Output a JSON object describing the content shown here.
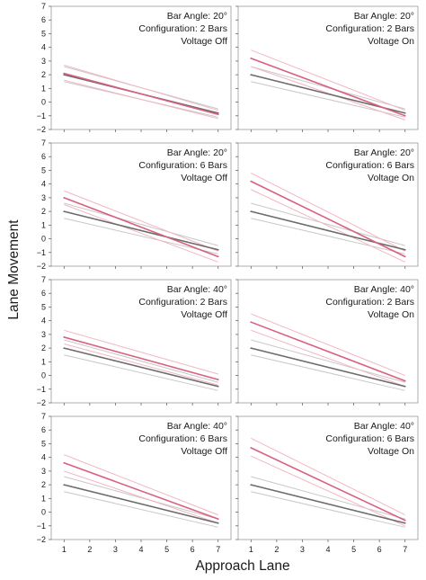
{
  "figure": {
    "xlabel": "Approach Lane",
    "ylabel": "Lane Movement"
  },
  "colors": {
    "baseline_line": "#6b6b6b",
    "baseline_band": "#c8c8c8",
    "condition_line": "#d9607e",
    "condition_band": "#f1b7c5",
    "panel_border": "#9a9a9a"
  },
  "chart_data": [
    {
      "type": "line",
      "annotation": [
        "Bar Angle: 20°",
        "Configuration: 2 Bars",
        "Voltage Off"
      ],
      "x": [
        1,
        7
      ],
      "xlim": [
        0.5,
        7.5
      ],
      "ylim": [
        -2,
        7
      ],
      "xticks": [
        1,
        2,
        3,
        4,
        5,
        6,
        7
      ],
      "yticks": [
        -2,
        -1,
        0,
        1,
        2,
        3,
        4,
        5,
        6,
        7
      ],
      "series": [
        {
          "role": "baseline",
          "values": [
            2.0,
            -0.8
          ],
          "ci_upper": [
            2.6,
            -0.5
          ],
          "ci_lower": [
            1.5,
            -1.1
          ]
        },
        {
          "role": "condition",
          "values": [
            2.1,
            -0.9
          ],
          "ci_upper": [
            2.7,
            -0.6
          ],
          "ci_lower": [
            1.6,
            -1.2
          ]
        }
      ]
    },
    {
      "type": "line",
      "annotation": [
        "Bar Angle: 20°",
        "Configuration: 2 Bars",
        "Voltage On"
      ],
      "x": [
        1,
        7
      ],
      "xlim": [
        0.5,
        7.5
      ],
      "ylim": [
        -2,
        7
      ],
      "xticks": [
        1,
        2,
        3,
        4,
        5,
        6,
        7
      ],
      "yticks": [
        -2,
        -1,
        0,
        1,
        2,
        3,
        4,
        5,
        6,
        7
      ],
      "series": [
        {
          "role": "baseline",
          "values": [
            2.0,
            -0.8
          ],
          "ci_upper": [
            2.6,
            -0.5
          ],
          "ci_lower": [
            1.5,
            -1.1
          ]
        },
        {
          "role": "condition",
          "values": [
            3.2,
            -1.0
          ],
          "ci_upper": [
            3.8,
            -0.6
          ],
          "ci_lower": [
            2.6,
            -1.3
          ]
        }
      ]
    },
    {
      "type": "line",
      "annotation": [
        "Bar Angle: 20°",
        "Configuration: 6 Bars",
        "Voltage Off"
      ],
      "x": [
        1,
        7
      ],
      "xlim": [
        0.5,
        7.5
      ],
      "ylim": [
        -2,
        7
      ],
      "xticks": [
        1,
        2,
        3,
        4,
        5,
        6,
        7
      ],
      "yticks": [
        -2,
        -1,
        0,
        1,
        2,
        3,
        4,
        5,
        6,
        7
      ],
      "series": [
        {
          "role": "baseline",
          "values": [
            2.0,
            -0.8
          ],
          "ci_upper": [
            2.6,
            -0.5
          ],
          "ci_lower": [
            1.5,
            -1.1
          ]
        },
        {
          "role": "condition",
          "values": [
            3.0,
            -1.3
          ],
          "ci_upper": [
            3.5,
            -0.9
          ],
          "ci_lower": [
            2.5,
            -1.7
          ]
        }
      ]
    },
    {
      "type": "line",
      "annotation": [
        "Bar Angle: 20°",
        "Configuration: 6 Bars",
        "Voltage On"
      ],
      "x": [
        1,
        7
      ],
      "xlim": [
        0.5,
        7.5
      ],
      "ylim": [
        -2,
        7
      ],
      "xticks": [
        1,
        2,
        3,
        4,
        5,
        6,
        7
      ],
      "yticks": [
        -2,
        -1,
        0,
        1,
        2,
        3,
        4,
        5,
        6,
        7
      ],
      "series": [
        {
          "role": "baseline",
          "values": [
            2.0,
            -0.8
          ],
          "ci_upper": [
            2.6,
            -0.5
          ],
          "ci_lower": [
            1.5,
            -1.1
          ]
        },
        {
          "role": "condition",
          "values": [
            4.2,
            -1.3
          ],
          "ci_upper": [
            4.8,
            -0.9
          ],
          "ci_lower": [
            3.6,
            -1.7
          ]
        }
      ]
    },
    {
      "type": "line",
      "annotation": [
        "Bar Angle: 40°",
        "Configuration: 2 Bars",
        "Voltage Off"
      ],
      "x": [
        1,
        7
      ],
      "xlim": [
        0.5,
        7.5
      ],
      "ylim": [
        -2,
        7
      ],
      "xticks": [
        1,
        2,
        3,
        4,
        5,
        6,
        7
      ],
      "yticks": [
        -2,
        -1,
        0,
        1,
        2,
        3,
        4,
        5,
        6,
        7
      ],
      "series": [
        {
          "role": "baseline",
          "values": [
            2.0,
            -0.8
          ],
          "ci_upper": [
            2.6,
            -0.5
          ],
          "ci_lower": [
            1.5,
            -1.1
          ]
        },
        {
          "role": "condition",
          "values": [
            2.8,
            -0.3
          ],
          "ci_upper": [
            3.3,
            0.1
          ],
          "ci_lower": [
            2.3,
            -0.7
          ]
        }
      ]
    },
    {
      "type": "line",
      "annotation": [
        "Bar Angle: 40°",
        "Configuration: 2 Bars",
        "Voltage On"
      ],
      "x": [
        1,
        7
      ],
      "xlim": [
        0.5,
        7.5
      ],
      "ylim": [
        -2,
        7
      ],
      "xticks": [
        1,
        2,
        3,
        4,
        5,
        6,
        7
      ],
      "yticks": [
        -2,
        -1,
        0,
        1,
        2,
        3,
        4,
        5,
        6,
        7
      ],
      "series": [
        {
          "role": "baseline",
          "values": [
            2.0,
            -0.8
          ],
          "ci_upper": [
            2.6,
            -0.5
          ],
          "ci_lower": [
            1.5,
            -1.1
          ]
        },
        {
          "role": "condition",
          "values": [
            3.9,
            -0.4
          ],
          "ci_upper": [
            4.5,
            0.0
          ],
          "ci_lower": [
            3.3,
            -0.8
          ]
        }
      ]
    },
    {
      "type": "line",
      "annotation": [
        "Bar Angle: 40°",
        "Configuration: 6 Bars",
        "Voltage Off"
      ],
      "x": [
        1,
        7
      ],
      "xlim": [
        0.5,
        7.5
      ],
      "ylim": [
        -2,
        7
      ],
      "xticks": [
        1,
        2,
        3,
        4,
        5,
        6,
        7
      ],
      "yticks": [
        -2,
        -1,
        0,
        1,
        2,
        3,
        4,
        5,
        6,
        7
      ],
      "series": [
        {
          "role": "baseline",
          "values": [
            2.0,
            -0.8
          ],
          "ci_upper": [
            2.6,
            -0.5
          ],
          "ci_lower": [
            1.5,
            -1.1
          ]
        },
        {
          "role": "condition",
          "values": [
            3.6,
            -0.5
          ],
          "ci_upper": [
            4.2,
            -0.2
          ],
          "ci_lower": [
            3.0,
            -0.8
          ]
        }
      ]
    },
    {
      "type": "line",
      "annotation": [
        "Bar Angle: 40°",
        "Configuration: 6 Bars",
        "Voltage On"
      ],
      "x": [
        1,
        7
      ],
      "xlim": [
        0.5,
        7.5
      ],
      "ylim": [
        -2,
        7
      ],
      "xticks": [
        1,
        2,
        3,
        4,
        5,
        6,
        7
      ],
      "yticks": [
        -2,
        -1,
        0,
        1,
        2,
        3,
        4,
        5,
        6,
        7
      ],
      "series": [
        {
          "role": "baseline",
          "values": [
            2.0,
            -0.8
          ],
          "ci_upper": [
            2.6,
            -0.5
          ],
          "ci_lower": [
            1.5,
            -1.1
          ]
        },
        {
          "role": "condition",
          "values": [
            4.7,
            -0.6
          ],
          "ci_upper": [
            5.4,
            -0.2
          ],
          "ci_lower": [
            4.1,
            -1.0
          ]
        }
      ]
    }
  ]
}
